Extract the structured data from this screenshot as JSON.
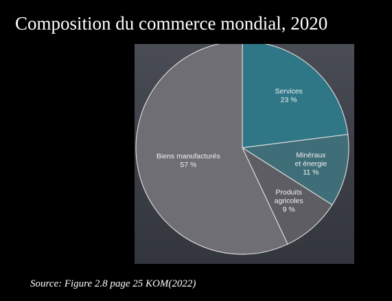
{
  "slide": {
    "title": "Composition du commerce mondial, 2020",
    "source": "Source: Figure 2.8 page 25 KOM(2022)"
  },
  "chart_data": {
    "type": "pie",
    "title": "",
    "unit": "%",
    "slices": [
      {
        "label_lines": [
          "Services"
        ],
        "value": 23,
        "value_label": "23 %",
        "color": "#2f7687"
      },
      {
        "label_lines": [
          "Minéraux",
          "et énergie"
        ],
        "value": 11,
        "value_label": "11 %",
        "color": "#3f6e78"
      },
      {
        "label_lines": [
          "Produits",
          "agricoles"
        ],
        "value": 9,
        "value_label": "9 %",
        "color": "#5e5d63"
      },
      {
        "label_lines": [
          "Biens manufacturés"
        ],
        "value": 57,
        "value_label": "57 %",
        "color": "#6f6e74"
      }
    ],
    "start_angle_deg": 0,
    "direction": "clockwise",
    "legend": "none",
    "labels_position": "inside"
  }
}
